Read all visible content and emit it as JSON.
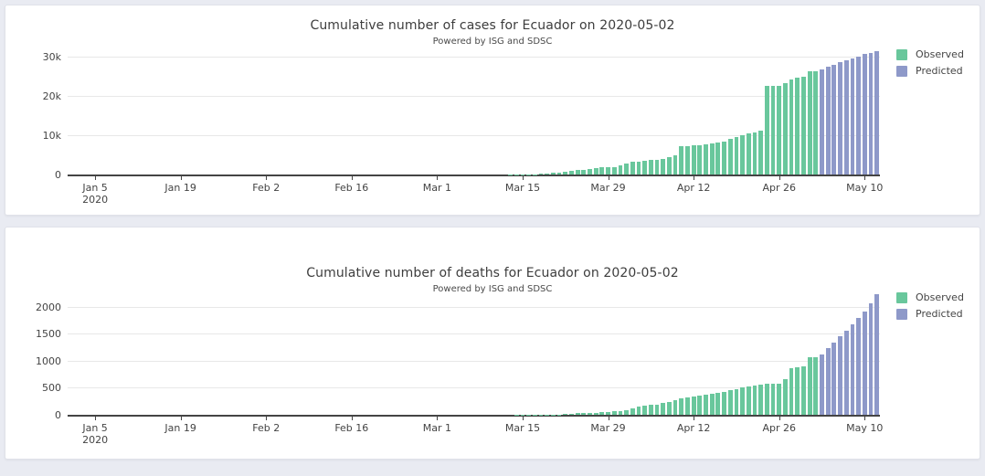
{
  "page": {
    "background_color": "#e9ebf2"
  },
  "chart_data": [
    {
      "type": "bar",
      "title": "Cumulative number of cases for Ecuador on 2020-05-02",
      "subtitle": "Powered by ISG and SDSC",
      "xlabel": "",
      "ylabel": "",
      "x_start": "2020-01-01",
      "x_end": "2020-05-13",
      "ylim": [
        0,
        31500
      ],
      "grid": true,
      "legend_position": "top-right",
      "x_ticks": [
        {
          "date": "2020-01-05",
          "label": "Jan 5",
          "sublabel": "2020"
        },
        {
          "date": "2020-01-19",
          "label": "Jan 19"
        },
        {
          "date": "2020-02-02",
          "label": "Feb 2"
        },
        {
          "date": "2020-02-16",
          "label": "Feb 16"
        },
        {
          "date": "2020-03-01",
          "label": "Mar 1"
        },
        {
          "date": "2020-03-15",
          "label": "Mar 15"
        },
        {
          "date": "2020-03-29",
          "label": "Mar 29"
        },
        {
          "date": "2020-04-12",
          "label": "Apr 12"
        },
        {
          "date": "2020-04-26",
          "label": "Apr 26"
        },
        {
          "date": "2020-05-10",
          "label": "May 10"
        }
      ],
      "y_ticks": [
        {
          "v": 0,
          "label": "0"
        },
        {
          "v": 10000,
          "label": "10k"
        },
        {
          "v": 20000,
          "label": "20k"
        },
        {
          "v": 30000,
          "label": "30k"
        }
      ],
      "series": [
        {
          "name": "Observed",
          "color": "#69c79c",
          "points": [
            [
              "2020-02-29",
              1
            ],
            [
              "2020-03-01",
              6
            ],
            [
              "2020-03-02",
              6
            ],
            [
              "2020-03-03",
              7
            ],
            [
              "2020-03-04",
              10
            ],
            [
              "2020-03-05",
              13
            ],
            [
              "2020-03-06",
              13
            ],
            [
              "2020-03-07",
              14
            ],
            [
              "2020-03-08",
              14
            ],
            [
              "2020-03-09",
              15
            ],
            [
              "2020-03-10",
              15
            ],
            [
              "2020-03-11",
              17
            ],
            [
              "2020-03-12",
              17
            ],
            [
              "2020-03-13",
              23
            ],
            [
              "2020-03-14",
              28
            ],
            [
              "2020-03-15",
              37
            ],
            [
              "2020-03-16",
              58
            ],
            [
              "2020-03-17",
              111
            ],
            [
              "2020-03-18",
              168
            ],
            [
              "2020-03-19",
              260
            ],
            [
              "2020-03-20",
              367
            ],
            [
              "2020-03-21",
              506
            ],
            [
              "2020-03-22",
              789
            ],
            [
              "2020-03-23",
              981
            ],
            [
              "2020-03-24",
              1082
            ],
            [
              "2020-03-25",
              1173
            ],
            [
              "2020-03-26",
              1403
            ],
            [
              "2020-03-27",
              1595
            ],
            [
              "2020-03-28",
              1823
            ],
            [
              "2020-03-29",
              1924
            ],
            [
              "2020-03-30",
              1962
            ],
            [
              "2020-03-31",
              2240
            ],
            [
              "2020-04-01",
              2748
            ],
            [
              "2020-04-02",
              3163
            ],
            [
              "2020-04-03",
              3368
            ],
            [
              "2020-04-04",
              3465
            ],
            [
              "2020-04-05",
              3646
            ],
            [
              "2020-04-06",
              3747
            ],
            [
              "2020-04-07",
              3995
            ],
            [
              "2020-04-08",
              4450
            ],
            [
              "2020-04-09",
              4965
            ],
            [
              "2020-04-10",
              7161
            ],
            [
              "2020-04-11",
              7257
            ],
            [
              "2020-04-12",
              7466
            ],
            [
              "2020-04-13",
              7529
            ],
            [
              "2020-04-14",
              7603
            ],
            [
              "2020-04-15",
              7858
            ],
            [
              "2020-04-16",
              8225
            ],
            [
              "2020-04-17",
              8450
            ],
            [
              "2020-04-18",
              9022
            ],
            [
              "2020-04-19",
              9468
            ],
            [
              "2020-04-20",
              10128
            ],
            [
              "2020-04-21",
              10398
            ],
            [
              "2020-04-22",
              10850
            ],
            [
              "2020-04-23",
              11183
            ],
            [
              "2020-04-24",
              22719
            ],
            [
              "2020-04-25",
              22719
            ],
            [
              "2020-04-26",
              22719
            ],
            [
              "2020-04-27",
              23240
            ],
            [
              "2020-04-28",
              24258
            ],
            [
              "2020-04-29",
              24675
            ],
            [
              "2020-04-30",
              24934
            ],
            [
              "2020-05-01",
              26336
            ],
            [
              "2020-05-02",
              26336
            ]
          ]
        },
        {
          "name": "Predicted",
          "color": "#8e99c9",
          "points": [
            [
              "2020-05-03",
              26900
            ],
            [
              "2020-05-04",
              27500
            ],
            [
              "2020-05-05",
              28000
            ],
            [
              "2020-05-06",
              28600
            ],
            [
              "2020-05-07",
              29100
            ],
            [
              "2020-05-08",
              29700
            ],
            [
              "2020-05-09",
              30200
            ],
            [
              "2020-05-10",
              30700
            ],
            [
              "2020-05-11",
              31100
            ],
            [
              "2020-05-12",
              31500
            ]
          ]
        }
      ]
    },
    {
      "type": "bar",
      "title": "Cumulative number of deaths for Ecuador on 2020-05-02",
      "subtitle": "Powered by ISG and SDSC",
      "xlabel": "",
      "ylabel": "",
      "x_start": "2020-01-01",
      "x_end": "2020-05-13",
      "ylim": [
        0,
        2250
      ],
      "grid": true,
      "legend_position": "top-right",
      "x_ticks": [
        {
          "date": "2020-01-05",
          "label": "Jan 5",
          "sublabel": "2020"
        },
        {
          "date": "2020-01-19",
          "label": "Jan 19"
        },
        {
          "date": "2020-02-02",
          "label": "Feb 2"
        },
        {
          "date": "2020-02-16",
          "label": "Feb 16"
        },
        {
          "date": "2020-03-01",
          "label": "Mar 1"
        },
        {
          "date": "2020-03-15",
          "label": "Mar 15"
        },
        {
          "date": "2020-03-29",
          "label": "Mar 29"
        },
        {
          "date": "2020-04-12",
          "label": "Apr 12"
        },
        {
          "date": "2020-04-26",
          "label": "Apr 26"
        },
        {
          "date": "2020-05-10",
          "label": "May 10"
        }
      ],
      "y_ticks": [
        {
          "v": 0,
          "label": "0"
        },
        {
          "v": 500,
          "label": "500"
        },
        {
          "v": 1000,
          "label": "1000"
        },
        {
          "v": 1500,
          "label": "1500"
        },
        {
          "v": 2000,
          "label": "2000"
        }
      ],
      "series": [
        {
          "name": "Observed",
          "color": "#69c79c",
          "points": [
            [
              "2020-03-13",
              1
            ],
            [
              "2020-03-14",
              2
            ],
            [
              "2020-03-15",
              2
            ],
            [
              "2020-03-16",
              2
            ],
            [
              "2020-03-17",
              2
            ],
            [
              "2020-03-18",
              3
            ],
            [
              "2020-03-19",
              4
            ],
            [
              "2020-03-20",
              5
            ],
            [
              "2020-03-21",
              7
            ],
            [
              "2020-03-22",
              14
            ],
            [
              "2020-03-23",
              18
            ],
            [
              "2020-03-24",
              27
            ],
            [
              "2020-03-25",
              28
            ],
            [
              "2020-03-26",
              34
            ],
            [
              "2020-03-27",
              36
            ],
            [
              "2020-03-28",
              48
            ],
            [
              "2020-03-29",
              58
            ],
            [
              "2020-03-30",
              60
            ],
            [
              "2020-03-31",
              75
            ],
            [
              "2020-04-01",
              93
            ],
            [
              "2020-04-02",
              120
            ],
            [
              "2020-04-03",
              145
            ],
            [
              "2020-04-04",
              172
            ],
            [
              "2020-04-05",
              180
            ],
            [
              "2020-04-06",
              191
            ],
            [
              "2020-04-07",
              220
            ],
            [
              "2020-04-08",
              242
            ],
            [
              "2020-04-09",
              272
            ],
            [
              "2020-04-10",
              297
            ],
            [
              "2020-04-11",
              315
            ],
            [
              "2020-04-12",
              333
            ],
            [
              "2020-04-13",
              355
            ],
            [
              "2020-04-14",
              369
            ],
            [
              "2020-04-15",
              388
            ],
            [
              "2020-04-16",
              403
            ],
            [
              "2020-04-17",
              421
            ],
            [
              "2020-04-18",
              456
            ],
            [
              "2020-04-19",
              474
            ],
            [
              "2020-04-20",
              507
            ],
            [
              "2020-04-21",
              520
            ],
            [
              "2020-04-22",
              537
            ],
            [
              "2020-04-23",
              560
            ],
            [
              "2020-04-24",
              576
            ],
            [
              "2020-04-25",
              576
            ],
            [
              "2020-04-26",
              576
            ],
            [
              "2020-04-27",
              663
            ],
            [
              "2020-04-28",
              871
            ],
            [
              "2020-04-29",
              883
            ],
            [
              "2020-04-30",
              900
            ],
            [
              "2020-05-01",
              1063
            ],
            [
              "2020-05-02",
              1063
            ]
          ]
        },
        {
          "name": "Predicted",
          "color": "#8e99c9",
          "points": [
            [
              "2020-05-03",
              1120
            ],
            [
              "2020-05-04",
              1230
            ],
            [
              "2020-05-05",
              1340
            ],
            [
              "2020-05-06",
              1450
            ],
            [
              "2020-05-07",
              1560
            ],
            [
              "2020-05-08",
              1670
            ],
            [
              "2020-05-09",
              1790
            ],
            [
              "2020-05-10",
              1910
            ],
            [
              "2020-05-11",
              2060
            ],
            [
              "2020-05-12",
              2230
            ]
          ]
        }
      ]
    }
  ]
}
